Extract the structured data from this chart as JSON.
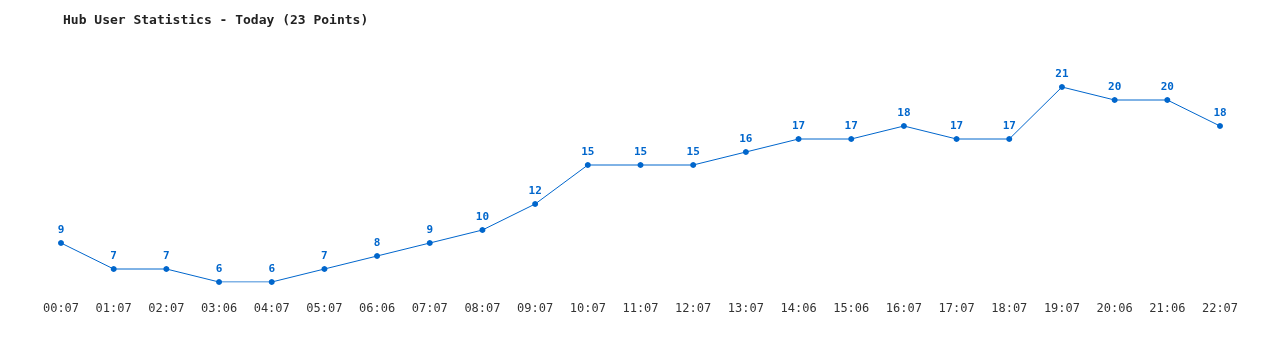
{
  "chart_data": {
    "type": "line",
    "title": "Hub User Statistics - Today (23 Points)",
    "categories": [
      "00:07",
      "01:07",
      "02:07",
      "03:06",
      "04:07",
      "05:07",
      "06:06",
      "07:07",
      "08:07",
      "09:07",
      "10:07",
      "11:07",
      "12:07",
      "13:07",
      "14:06",
      "15:06",
      "16:07",
      "17:07",
      "18:07",
      "19:07",
      "20:06",
      "21:06",
      "22:07"
    ],
    "series": [
      {
        "color": "#0066cc",
        "values": [
          9,
          7,
          7,
          6,
          6,
          7,
          8,
          9,
          10,
          12,
          15,
          15,
          15,
          16,
          17,
          17,
          18,
          17,
          17,
          21,
          20,
          20,
          18
        ]
      }
    ],
    "data_labels": true,
    "marker": "circle",
    "line_style": "solid"
  }
}
